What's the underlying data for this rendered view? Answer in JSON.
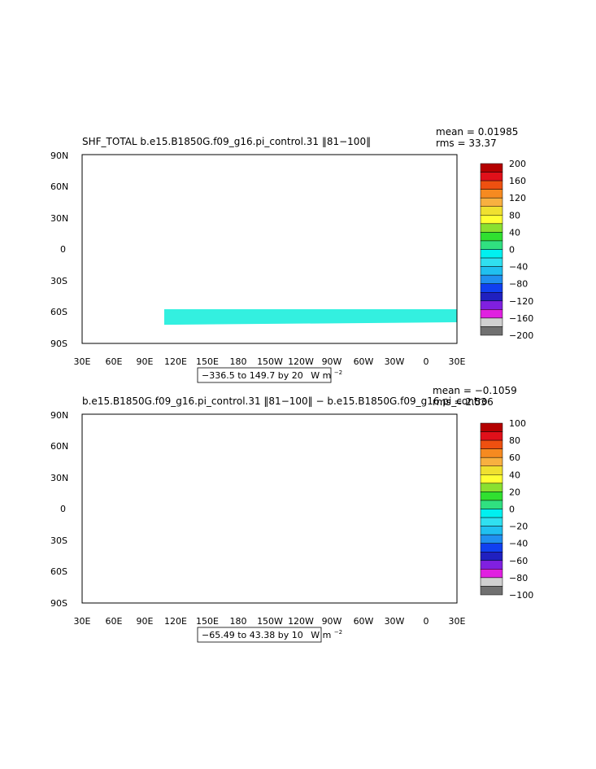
{
  "panels": [
    {
      "title": "SHF_TOTAL  b.e15.B1850G.f09_g16.pi_control.31  ‖81−100‖",
      "stats": {
        "mean": "mean = 0.01985",
        "rms": "rms = 33.37"
      },
      "contour_info": {
        "text": "−336.5 to 149.7 by 20",
        "units": "W m",
        "exp": "−2"
      },
      "colorbar": {
        "labels": [
          "200",
          "160",
          "120",
          "80",
          "40",
          "0",
          "−40",
          "−80",
          "−120",
          "−160",
          "−200"
        ],
        "colors": [
          "#b40000",
          "#e0101a",
          "#ee5010",
          "#f68a20",
          "#f8b040",
          "#f0e030",
          "#ffff33",
          "#8ae030",
          "#30e030",
          "#30e080",
          "#00f0f0",
          "#30e0f0",
          "#20c0f0",
          "#2090f0",
          "#1040f0",
          "#2020c0",
          "#8020e0",
          "#e020e0",
          "#d0d0d0",
          "#707070"
        ]
      }
    },
    {
      "title": "b.e15.B1850G.f09_g16.pi_control.31  ‖81−100‖  −  b.e15.B1850G.f09_g16.pi_contro",
      "stats": {
        "mean": "mean = −0.1059",
        "rms": "rms = 2.536"
      },
      "contour_info": {
        "text": "−65.49 to 43.38 by 10",
        "units": "W m",
        "exp": "−2"
      },
      "colorbar": {
        "labels": [
          "100",
          "80",
          "60",
          "40",
          "20",
          "0",
          "−20",
          "−40",
          "−60",
          "−80",
          "−100"
        ],
        "colors": [
          "#b40000",
          "#e0101a",
          "#ee5010",
          "#f68a20",
          "#f8b040",
          "#f0e030",
          "#ffff33",
          "#8ae030",
          "#30e030",
          "#30e080",
          "#00f0f0",
          "#30e0f0",
          "#20c0f0",
          "#2090f0",
          "#1040f0",
          "#2020c0",
          "#8020e0",
          "#e020e0",
          "#d0d0d0",
          "#707070"
        ]
      }
    }
  ],
  "axes": {
    "lat_labels": [
      "90N",
      "60N",
      "30N",
      "0",
      "30S",
      "60S",
      "90S"
    ],
    "lon_labels": [
      "30E",
      "60E",
      "90E",
      "120E",
      "150E",
      "180",
      "150W",
      "120W",
      "90W",
      "60W",
      "30W",
      "0",
      "30E"
    ]
  },
  "colors": {
    "ocean_main": "#33f0e0",
    "ocean_band": "#30e060",
    "land": "#ffffff"
  }
}
